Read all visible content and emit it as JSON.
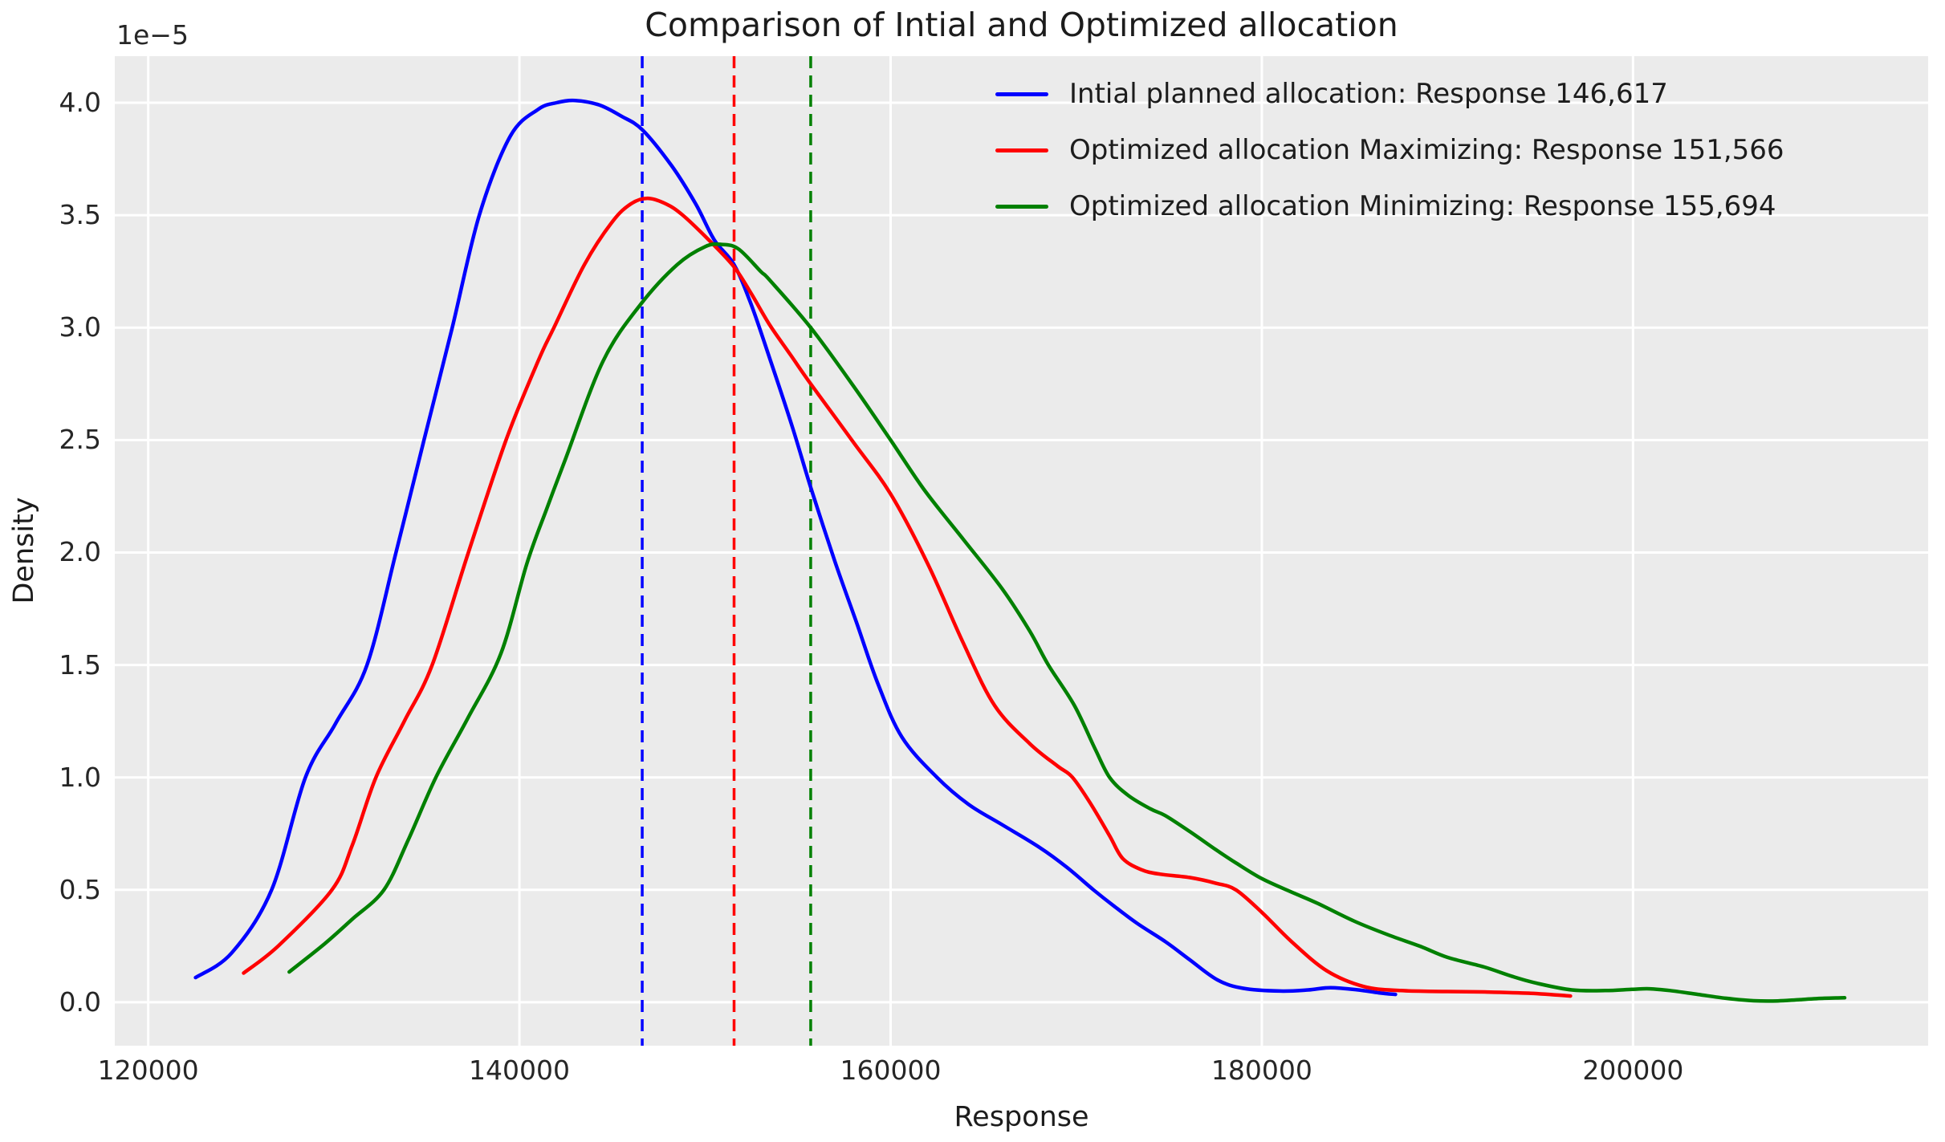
{
  "title": "Comparison of Intial and Optimized allocation",
  "offset_label": "1e−5",
  "xlabel": "Response",
  "ylabel": "Density",
  "colors": {
    "figure_bg": "#ffffff",
    "axes_bg": "#ebebeb",
    "grid": "#ffffff",
    "text": "#1c1c1c",
    "tick_text": "#262626",
    "blue": "#0000ff",
    "red": "#ff0000",
    "green": "#008000"
  },
  "legend": [
    {
      "label": "Intial planned allocation: Response 146,617",
      "color": "#0000ff"
    },
    {
      "label": "Optimized allocation Maximizing: Response 151,566",
      "color": "#ff0000"
    },
    {
      "label": "Optimized allocation Minimizing: Response 155,694",
      "color": "#008000"
    }
  ],
  "chart_data": {
    "type": "line",
    "title": "Comparison of Intial and Optimized allocation",
    "xlabel": "Response",
    "ylabel": "Density",
    "y_units": "1e-5 (axis offset label shown top-left)",
    "xlim": [
      118200,
      215900
    ],
    "ylim": [
      -0.193,
      4.207
    ],
    "x_ticks": [
      120000,
      140000,
      160000,
      180000,
      200000
    ],
    "y_ticks": [
      0.0,
      0.5,
      1.0,
      1.5,
      2.0,
      2.5,
      3.0,
      3.5,
      4.0
    ],
    "grid": true,
    "legend_position": "upper right",
    "series": [
      {
        "name": "Intial planned allocation: Response 146,617",
        "color": "#0000ff",
        "mean_vline": 146617,
        "vline_style": "dashed",
        "points": [
          [
            122550,
            0.11
          ],
          [
            124500,
            0.22
          ],
          [
            126650,
            0.5
          ],
          [
            128470,
            1.0
          ],
          [
            130100,
            1.24
          ],
          [
            131790,
            1.5
          ],
          [
            133350,
            2.0
          ],
          [
            134860,
            2.5
          ],
          [
            136380,
            3.0
          ],
          [
            137840,
            3.5
          ],
          [
            139500,
            3.85
          ],
          [
            141000,
            3.97
          ],
          [
            142000,
            4.0
          ],
          [
            143000,
            4.01
          ],
          [
            144300,
            3.99
          ],
          [
            145500,
            3.94
          ],
          [
            146617,
            3.88
          ],
          [
            148200,
            3.72
          ],
          [
            149500,
            3.55
          ],
          [
            150500,
            3.39
          ],
          [
            151566,
            3.28
          ],
          [
            152500,
            3.1
          ],
          [
            153500,
            2.86
          ],
          [
            154700,
            2.56
          ],
          [
            155694,
            2.29
          ],
          [
            157000,
            1.96
          ],
          [
            158200,
            1.68
          ],
          [
            159300,
            1.42
          ],
          [
            160600,
            1.18
          ],
          [
            162500,
            1.0
          ],
          [
            164200,
            0.88
          ],
          [
            166000,
            0.79
          ],
          [
            168000,
            0.69
          ],
          [
            169500,
            0.6
          ],
          [
            170930,
            0.5
          ],
          [
            172000,
            0.43
          ],
          [
            173300,
            0.35
          ],
          [
            174800,
            0.27
          ],
          [
            176100,
            0.19
          ],
          [
            177600,
            0.1
          ],
          [
            179000,
            0.062
          ],
          [
            181000,
            0.05
          ],
          [
            182500,
            0.055
          ],
          [
            183700,
            0.065
          ],
          [
            185200,
            0.055
          ],
          [
            186300,
            0.042
          ],
          [
            187200,
            0.035
          ]
        ]
      },
      {
        "name": "Optimized allocation Maximizing: Response 151,566",
        "color": "#ff0000",
        "mean_vline": 151566,
        "vline_style": "dashed",
        "points": [
          [
            125140,
            0.13
          ],
          [
            127000,
            0.25
          ],
          [
            129900,
            0.5
          ],
          [
            131000,
            0.7
          ],
          [
            132270,
            1.0
          ],
          [
            133800,
            1.25
          ],
          [
            135300,
            1.5
          ],
          [
            137250,
            2.0
          ],
          [
            139280,
            2.5
          ],
          [
            141000,
            2.85
          ],
          [
            141860,
            3.0
          ],
          [
            143500,
            3.28
          ],
          [
            145000,
            3.47
          ],
          [
            146000,
            3.55
          ],
          [
            146900,
            3.575
          ],
          [
            147900,
            3.55
          ],
          [
            148800,
            3.5
          ],
          [
            150200,
            3.39
          ],
          [
            151566,
            3.27
          ],
          [
            152500,
            3.15
          ],
          [
            153500,
            3.01
          ],
          [
            154600,
            2.88
          ],
          [
            155694,
            2.75
          ],
          [
            158000,
            2.49
          ],
          [
            160000,
            2.26
          ],
          [
            162000,
            1.95
          ],
          [
            163900,
            1.6
          ],
          [
            165600,
            1.32
          ],
          [
            167500,
            1.15
          ],
          [
            169000,
            1.05
          ],
          [
            169800,
            1.0
          ],
          [
            170800,
            0.88
          ],
          [
            171800,
            0.74
          ],
          [
            172500,
            0.64
          ],
          [
            173500,
            0.59
          ],
          [
            174500,
            0.57
          ],
          [
            176100,
            0.555
          ],
          [
            177500,
            0.53
          ],
          [
            178600,
            0.5
          ],
          [
            180000,
            0.4
          ],
          [
            181600,
            0.27
          ],
          [
            183500,
            0.14
          ],
          [
            185500,
            0.07
          ],
          [
            187500,
            0.052
          ],
          [
            190000,
            0.048
          ],
          [
            192000,
            0.046
          ],
          [
            194500,
            0.04
          ],
          [
            196630,
            0.028
          ]
        ]
      },
      {
        "name": "Optimized allocation Minimizing: Response 155,694",
        "color": "#008000",
        "mean_vline": 155694,
        "vline_style": "dashed",
        "points": [
          [
            127600,
            0.135
          ],
          [
            129500,
            0.26
          ],
          [
            131000,
            0.37
          ],
          [
            132700,
            0.5
          ],
          [
            134000,
            0.72
          ],
          [
            135500,
            1.0
          ],
          [
            137200,
            1.26
          ],
          [
            139000,
            1.55
          ],
          [
            140400,
            1.95
          ],
          [
            141500,
            2.2
          ],
          [
            142500,
            2.42
          ],
          [
            144500,
            2.85
          ],
          [
            146500,
            3.1
          ],
          [
            148500,
            3.28
          ],
          [
            150000,
            3.36
          ],
          [
            150900,
            3.37
          ],
          [
            151800,
            3.35
          ],
          [
            153000,
            3.25
          ],
          [
            153500,
            3.21
          ],
          [
            155694,
            3.0
          ],
          [
            158000,
            2.74
          ],
          [
            160000,
            2.5
          ],
          [
            161800,
            2.28
          ],
          [
            163900,
            2.06
          ],
          [
            166000,
            1.84
          ],
          [
            167500,
            1.65
          ],
          [
            168500,
            1.5
          ],
          [
            169900,
            1.32
          ],
          [
            171000,
            1.13
          ],
          [
            171800,
            1.0
          ],
          [
            172800,
            0.92
          ],
          [
            174000,
            0.86
          ],
          [
            174800,
            0.83
          ],
          [
            176100,
            0.76
          ],
          [
            177500,
            0.68
          ],
          [
            178600,
            0.62
          ],
          [
            180000,
            0.55
          ],
          [
            181600,
            0.49
          ],
          [
            183000,
            0.44
          ],
          [
            185000,
            0.36
          ],
          [
            186800,
            0.3
          ],
          [
            188500,
            0.25
          ],
          [
            190000,
            0.2
          ],
          [
            191970,
            0.157
          ],
          [
            193500,
            0.115
          ],
          [
            194800,
            0.085
          ],
          [
            196700,
            0.055
          ],
          [
            198500,
            0.052
          ],
          [
            200000,
            0.058
          ],
          [
            200900,
            0.06
          ],
          [
            202000,
            0.052
          ],
          [
            203500,
            0.035
          ],
          [
            205000,
            0.018
          ],
          [
            206500,
            0.007
          ],
          [
            207800,
            0.006
          ],
          [
            209000,
            0.012
          ],
          [
            210300,
            0.018
          ],
          [
            211400,
            0.02
          ]
        ]
      }
    ]
  }
}
